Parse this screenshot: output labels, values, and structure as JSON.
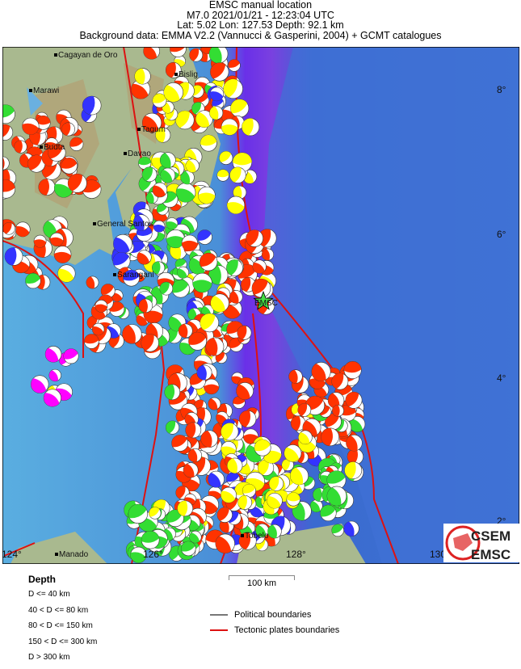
{
  "header": {
    "line1": "EMSC manual location",
    "line2": "M7.0  2021/01/21 - 12:23:04 UTC",
    "line3": "Lat:  5.02    Lon: 127.53     Depth:  92.1 km",
    "line4": "Background data: EMMA V2.2 (Vannucci & Gasperini, 2004) + GCMT catalogues"
  },
  "map": {
    "cities": [
      "Cagayan de Oro",
      "Marawi",
      "Budta",
      "Tagum",
      "Davao",
      "Bislig",
      "General Santos",
      "Sarangani",
      "Manado",
      "Tobelo"
    ],
    "lat_ticks": [
      "8°",
      "6°",
      "4°",
      "2°"
    ],
    "lon_ticks": [
      "124°",
      "126°",
      "128°",
      "130°"
    ],
    "epicenter_label": "EMSC",
    "depth_colors": {
      "shallow": "#ff3300",
      "intermediate": "#ffff00",
      "mid": "#33dd33",
      "deep": "#3333ff",
      "very_deep": "#ff00ff"
    },
    "plate_color": "#dd1111"
  },
  "legend": {
    "title": "Depth",
    "items": [
      "D <= 40 km",
      "40 < D <= 80 km",
      "80 < D <= 150 km",
      "150 < D <= 300 km",
      "D > 300 km"
    ]
  },
  "scale": "100 km",
  "lines": {
    "political": "Political boundaries",
    "tectonic": "Tectonic plates boundaries"
  },
  "logo": {
    "top": "CSEM",
    "bottom": "EMSC"
  }
}
